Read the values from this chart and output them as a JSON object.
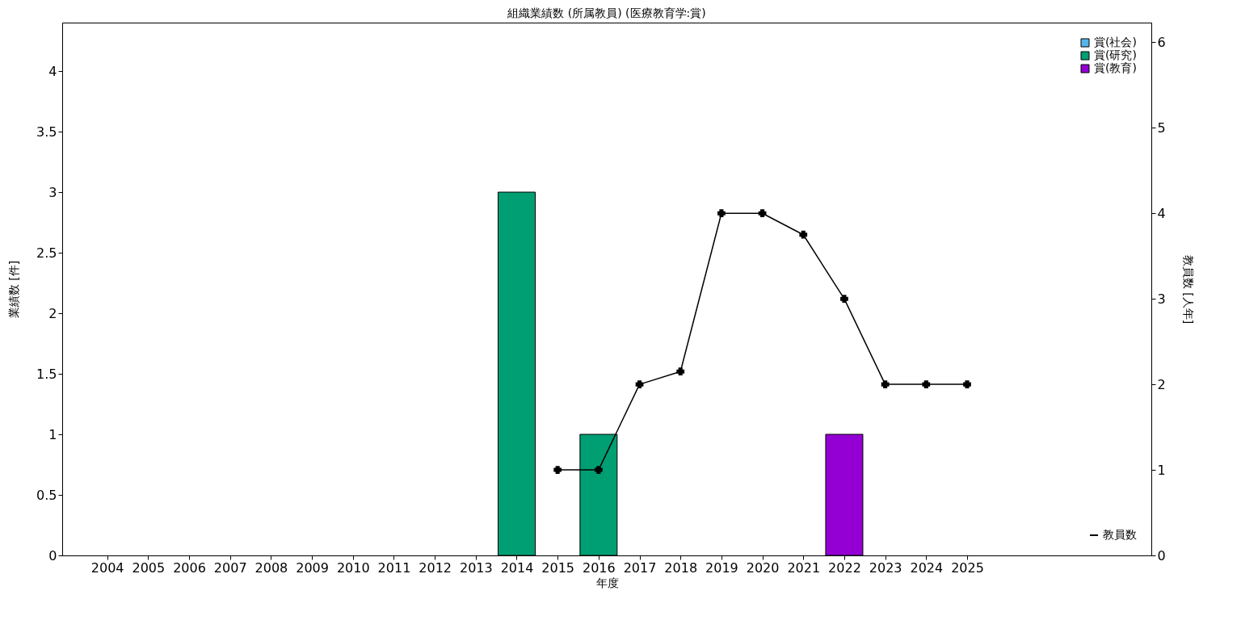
{
  "chart_data": {
    "type": "bar",
    "title": "組織業績数 (所属教員) (医療教育学:賞)",
    "xlabel": "年度",
    "ylabel": "業績数 [件]",
    "y2label": "教員数 [人年]",
    "x": [
      2004,
      2005,
      2006,
      2007,
      2008,
      2009,
      2010,
      2011,
      2012,
      2013,
      2014,
      2015,
      2016,
      2017,
      2018,
      2019,
      2020,
      2021,
      2022,
      2023,
      2024,
      2025
    ],
    "xlim": [
      2003,
      2029.4
    ],
    "xticks": [
      2004,
      2005,
      2006,
      2007,
      2008,
      2009,
      2010,
      2011,
      2012,
      2013,
      2014,
      2015,
      2016,
      2017,
      2018,
      2019,
      2020,
      2021,
      2022,
      2023,
      2024,
      2025
    ],
    "ylim": [
      0,
      4.4
    ],
    "yticks": [
      0,
      0.5,
      1,
      1.5,
      2,
      2.5,
      3,
      3.5,
      4
    ],
    "y2lim": [
      0,
      6.23
    ],
    "y2ticks": [
      0,
      1,
      2,
      3,
      4,
      5,
      6
    ],
    "legend": "top right",
    "marker": "cross",
    "series": [
      {
        "name": "賞(社会)",
        "color": "#56b4e9",
        "values": [
          0,
          0,
          0,
          0,
          0,
          0,
          0,
          0,
          0,
          0,
          0,
          0,
          0,
          0,
          0,
          0,
          0,
          0,
          0,
          0,
          0,
          0
        ]
      },
      {
        "name": "賞(研究)",
        "color": "#009e73",
        "values": [
          0,
          0,
          0,
          0,
          0,
          0,
          0,
          0,
          0,
          0,
          3,
          0,
          1,
          0,
          0,
          0,
          0,
          0,
          0,
          0,
          0,
          0
        ]
      },
      {
        "name": "賞(教育)",
        "color": "#9400d3",
        "values": [
          0,
          0,
          0,
          0,
          0,
          0,
          0,
          0,
          0,
          0,
          0,
          0,
          0,
          0,
          0,
          0,
          0,
          0,
          1,
          0,
          0,
          0
        ]
      },
      {
        "name": "教員数",
        "type": "line",
        "axis": "y2",
        "color": "#000000",
        "x": [
          2015,
          2016,
          2017,
          2018,
          2019,
          2020,
          2021,
          2022,
          2023,
          2024,
          2025
        ],
        "values": [
          1,
          1,
          2,
          2.15,
          4,
          4,
          3.75,
          3,
          2,
          2,
          2
        ]
      }
    ]
  }
}
